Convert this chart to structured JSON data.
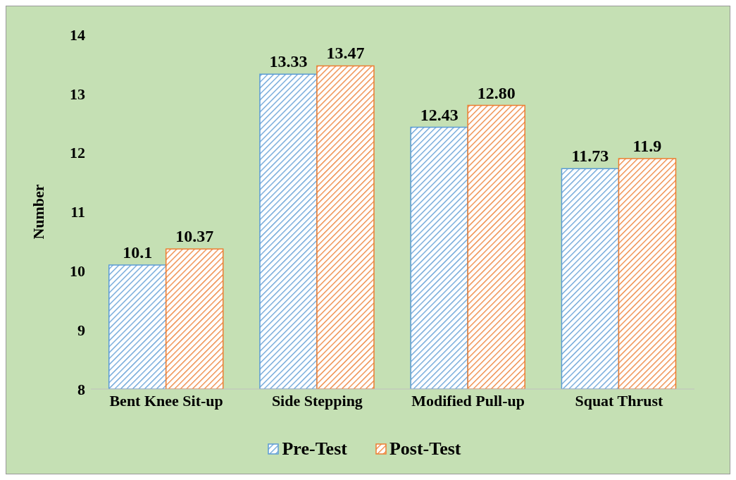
{
  "chart_data": {
    "type": "bar",
    "ylabel": "Number",
    "categories": [
      "Bent Knee Sit-up",
      "Side Stepping",
      "Modified Pull-up",
      "Squat Thrust"
    ],
    "series": [
      {
        "name": "Pre-Test",
        "color": "#5b9bd5",
        "values": [
          10.1,
          13.33,
          12.43,
          11.73
        ],
        "value_labels": [
          "10.1",
          "13.33",
          "12.43",
          "11.73"
        ]
      },
      {
        "name": "Post-Test",
        "color": "#ed7d31",
        "values": [
          10.37,
          13.47,
          12.8,
          11.9
        ],
        "value_labels": [
          "10.37",
          "13.47",
          "12.80",
          "11.9"
        ]
      }
    ],
    "ylim": [
      8,
      14
    ],
    "yticks": [
      8,
      9,
      10,
      11,
      12,
      13,
      14
    ],
    "grid": false,
    "legend": "bottom"
  }
}
